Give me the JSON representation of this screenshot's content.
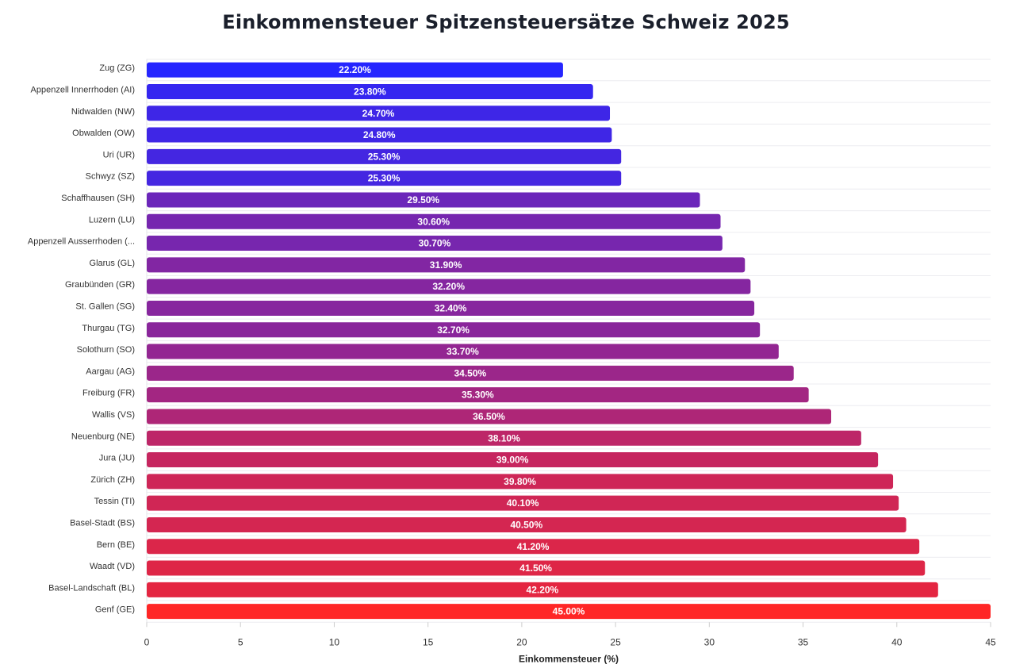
{
  "chart_data": {
    "type": "bar",
    "orientation": "horizontal",
    "title": "Einkommensteuer Spitzensteuersätze Schweiz 2025",
    "xlabel": "Einkommensteuer (%)",
    "ylabel": "",
    "xlim": [
      0,
      45
    ],
    "xticks": [
      "0",
      "5",
      "10",
      "15",
      "20",
      "25",
      "30",
      "35",
      "40",
      "45"
    ],
    "grid": "horizontal row separators",
    "color_low": "#2626ff",
    "color_high": "#ff2626",
    "categories": [
      "Zug (ZG)",
      "Appenzell Innerrhoden (AI)",
      "Nidwalden (NW)",
      "Obwalden (OW)",
      "Uri (UR)",
      "Schwyz (SZ)",
      "Schaffhausen (SH)",
      "Luzern (LU)",
      "Appenzell Ausserrhoden (...",
      "Glarus (GL)",
      "Graubünden (GR)",
      "St. Gallen (SG)",
      "Thurgau (TG)",
      "Solothurn (SO)",
      "Aargau (AG)",
      "Freiburg (FR)",
      "Wallis (VS)",
      "Neuenburg (NE)",
      "Jura (JU)",
      "Zürich (ZH)",
      "Tessin (TI)",
      "Basel-Stadt (BS)",
      "Bern (BE)",
      "Waadt (VD)",
      "Basel-Landschaft (BL)",
      "Genf (GE)"
    ],
    "values": [
      22.2,
      23.8,
      24.7,
      24.8,
      25.3,
      25.3,
      29.5,
      30.6,
      30.7,
      31.9,
      32.2,
      32.4,
      32.7,
      33.7,
      34.5,
      35.3,
      36.5,
      38.1,
      39.0,
      39.8,
      40.1,
      40.5,
      41.2,
      41.5,
      42.2,
      45.0
    ],
    "labels": [
      "22.20%",
      "23.80%",
      "24.70%",
      "24.80%",
      "25.30%",
      "25.30%",
      "29.50%",
      "30.60%",
      "30.70%",
      "31.90%",
      "32.20%",
      "32.40%",
      "32.70%",
      "33.70%",
      "34.50%",
      "35.30%",
      "36.50%",
      "38.10%",
      "39.00%",
      "39.80%",
      "40.10%",
      "40.50%",
      "41.20%",
      "41.50%",
      "42.20%",
      "45.00%"
    ]
  }
}
